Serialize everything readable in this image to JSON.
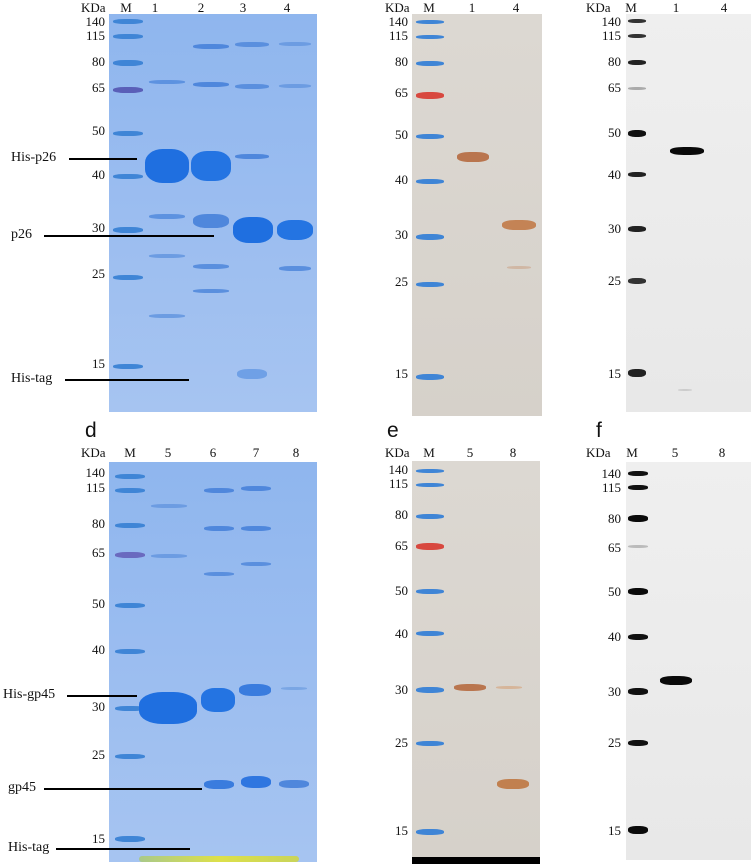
{
  "panels": {
    "a": {
      "header": "KDa",
      "lanes": [
        "M",
        "1",
        "2",
        "3",
        "4"
      ],
      "mw": [
        "140",
        "115",
        "80",
        "65",
        "50",
        "40",
        "30",
        "25",
        "15"
      ]
    },
    "b": {
      "header": "KDa",
      "lanes": [
        "M",
        "1",
        "4"
      ],
      "mw": [
        "140",
        "115",
        "80",
        "65",
        "50",
        "40",
        "30",
        "25",
        "15"
      ]
    },
    "c": {
      "header": "KDa",
      "lanes": [
        "M",
        "1",
        "4"
      ],
      "mw": [
        "140",
        "115",
        "80",
        "65",
        "50",
        "40",
        "30",
        "25",
        "15"
      ]
    },
    "d": {
      "letter": "d",
      "header": "KDa",
      "lanes": [
        "M",
        "5",
        "6",
        "7",
        "8"
      ],
      "mw": [
        "140",
        "115",
        "80",
        "65",
        "50",
        "40",
        "30",
        "25",
        "15"
      ]
    },
    "e": {
      "letter": "e",
      "header": "KDa",
      "lanes": [
        "M",
        "5",
        "8"
      ],
      "mw": [
        "140",
        "115",
        "80",
        "65",
        "50",
        "40",
        "30",
        "25",
        "15"
      ]
    },
    "f": {
      "letter": "f",
      "header": "KDa",
      "lanes": [
        "M",
        "5",
        "8"
      ],
      "mw": [
        "140",
        "115",
        "80",
        "65",
        "50",
        "40",
        "30",
        "25",
        "15"
      ]
    }
  },
  "callouts": {
    "his_p26": "His-p26",
    "p26": "p26",
    "his_tag_top": "His-tag",
    "his_gp45": "His-gp45",
    "gp45": "gp45",
    "his_tag_bottom": "His-tag"
  },
  "colors": {
    "coomassie_band": "#1f6fe0",
    "ladder_blue": "#3f85d6",
    "ladder_red": "#d8483f",
    "ponceau_band": "#b9754e",
    "western_band": "#0a0a0a"
  }
}
